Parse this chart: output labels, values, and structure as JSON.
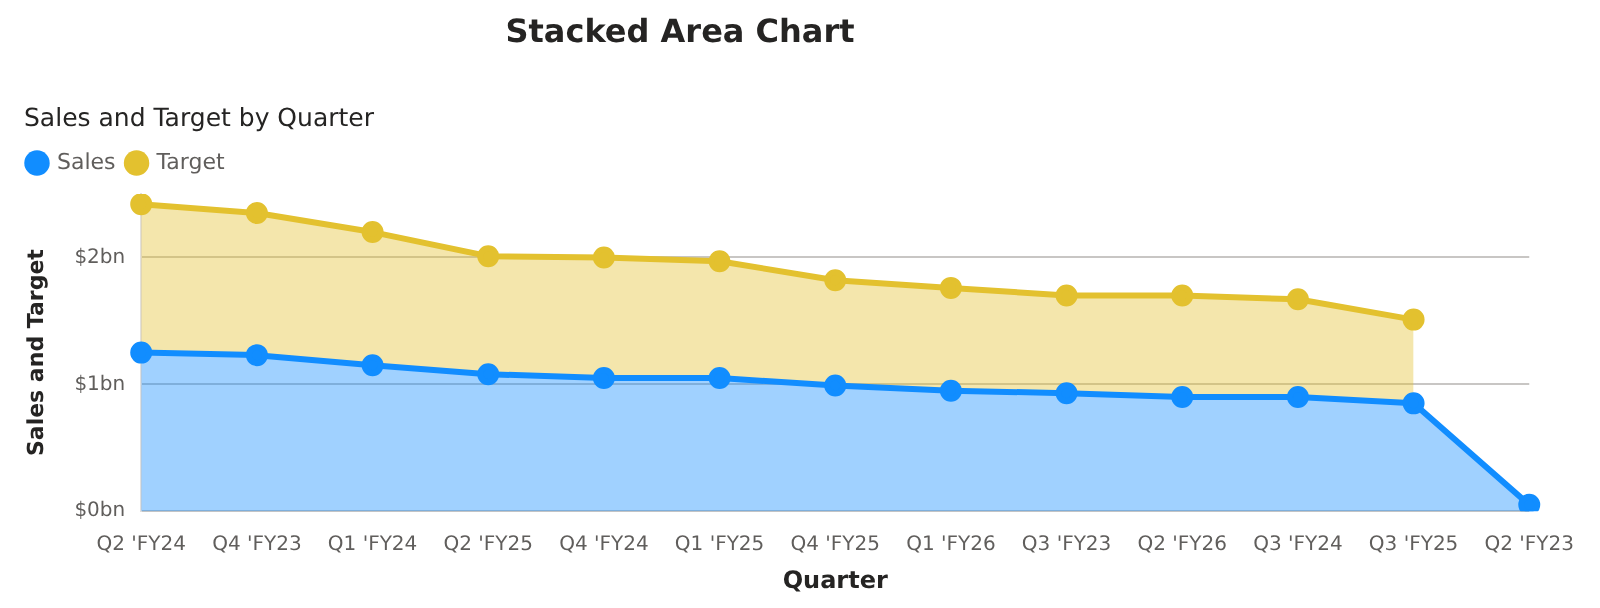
{
  "chart_data": {
    "type": "area",
    "title": "Stacked Area Chart",
    "subtitle": "Sales and Target by Quarter",
    "xlabel": "Quarter",
    "ylabel": "Sales and Target",
    "categories": [
      "Q2 'FY24",
      "Q4 'FY23",
      "Q1 'FY24",
      "Q2 'FY25",
      "Q4 'FY24",
      "Q1 'FY25",
      "Q4 'FY25",
      "Q1 'FY26",
      "Q3 'FY23",
      "Q2 'FY26",
      "Q3 'FY24",
      "Q3 'FY25",
      "Q2 'FY23"
    ],
    "series": [
      {
        "name": "Sales",
        "color": "#118dff",
        "values": [
          1.25,
          1.23,
          1.15,
          1.08,
          1.05,
          1.05,
          0.99,
          0.95,
          0.93,
          0.9,
          0.9,
          0.85,
          0.05
        ]
      },
      {
        "name": "Target",
        "color": "#e3c12f",
        "values": [
          1.17,
          1.12,
          1.05,
          0.93,
          0.95,
          0.92,
          0.83,
          0.81,
          0.77,
          0.8,
          0.77,
          0.66,
          null
        ]
      }
    ],
    "stacked": true,
    "ylim": [
      0,
      2.5
    ],
    "yticks": [
      {
        "value": 0,
        "label": "$0bn"
      },
      {
        "value": 1,
        "label": "$1bn"
      },
      {
        "value": 2,
        "label": "$2bn"
      }
    ],
    "grid": "y",
    "legend": "top left",
    "marker": "circle"
  }
}
